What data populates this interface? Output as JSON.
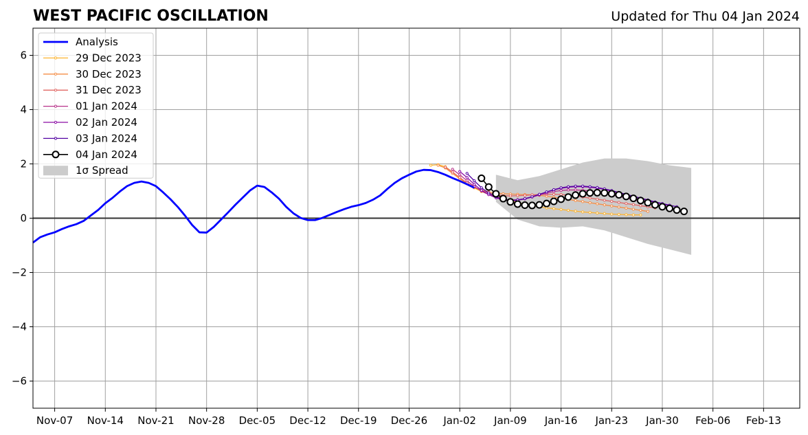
{
  "title": "WEST PACIFIC OSCILLATION",
  "subtitle": "Updated for Thu 04 Jan 2024",
  "chart_data": {
    "type": "line",
    "title": "WEST PACIFIC OSCILLATION",
    "subtitle": "Updated for Thu 04 Jan 2024",
    "xlim": [
      "2023-11-04",
      "2024-02-18"
    ],
    "ylim": [
      -7,
      7
    ],
    "yticks": [
      -6,
      -4,
      -2,
      0,
      2,
      4,
      6
    ],
    "ytick_labels": [
      "−6",
      "−4",
      "−2",
      "0",
      "2",
      "4",
      "6"
    ],
    "xticks": [
      "2023-11-07",
      "2023-11-14",
      "2023-11-21",
      "2023-11-28",
      "2023-12-05",
      "2023-12-12",
      "2023-12-19",
      "2023-12-26",
      "2024-01-02",
      "2024-01-09",
      "2024-01-16",
      "2024-01-23",
      "2024-01-30",
      "2024-02-06",
      "2024-02-13"
    ],
    "xtick_labels": [
      "Nov-07",
      "Nov-14",
      "Nov-21",
      "Nov-28",
      "Dec-05",
      "Dec-12",
      "Dec-19",
      "Dec-26",
      "Jan-02",
      "Jan-09",
      "Jan-16",
      "Jan-23",
      "Jan-30",
      "Feb-06",
      "Feb-13"
    ],
    "grid": true,
    "legend_position": "upper left",
    "spread_label": "1σ Spread",
    "spread": {
      "color": "#cccccc",
      "x": [
        "2024-01-07",
        "2024-01-10",
        "2024-01-13",
        "2024-01-16",
        "2024-01-19",
        "2024-01-22",
        "2024-01-25",
        "2024-01-28",
        "2024-01-31",
        "2024-02-03"
      ],
      "upper": [
        1.6,
        1.4,
        1.55,
        1.8,
        2.05,
        2.2,
        2.2,
        2.1,
        1.95,
        1.85
      ],
      "lower": [
        0.6,
        -0.05,
        -0.3,
        -0.35,
        -0.3,
        -0.45,
        -0.7,
        -0.95,
        -1.15,
        -1.35
      ]
    },
    "analysis": {
      "name": "Analysis",
      "color": "#0000ff",
      "x": [
        "2023-11-04",
        "2023-11-05",
        "2023-11-06",
        "2023-11-07",
        "2023-11-08",
        "2023-11-09",
        "2023-11-10",
        "2023-11-11",
        "2023-11-12",
        "2023-11-13",
        "2023-11-14",
        "2023-11-15",
        "2023-11-16",
        "2023-11-17",
        "2023-11-18",
        "2023-11-19",
        "2023-11-20",
        "2023-11-21",
        "2023-11-22",
        "2023-11-23",
        "2023-11-24",
        "2023-11-25",
        "2023-11-26",
        "2023-11-27",
        "2023-11-28",
        "2023-11-29",
        "2023-11-30",
        "2023-12-01",
        "2023-12-02",
        "2023-12-03",
        "2023-12-04",
        "2023-12-05",
        "2023-12-06",
        "2023-12-07",
        "2023-12-08",
        "2023-12-09",
        "2023-12-10",
        "2023-12-11",
        "2023-12-12",
        "2023-12-13",
        "2023-12-14",
        "2023-12-15",
        "2023-12-16",
        "2023-12-17",
        "2023-12-18",
        "2023-12-19",
        "2023-12-20",
        "2023-12-21",
        "2023-12-22",
        "2023-12-23",
        "2023-12-24",
        "2023-12-25",
        "2023-12-26",
        "2023-12-27",
        "2023-12-28",
        "2023-12-29",
        "2023-12-30",
        "2023-12-31",
        "2024-01-01",
        "2024-01-02",
        "2024-01-03",
        "2024-01-04"
      ],
      "y": [
        -0.9,
        -0.7,
        -0.6,
        -0.52,
        -0.4,
        -0.3,
        -0.22,
        -0.1,
        0.1,
        0.3,
        0.55,
        0.75,
        0.98,
        1.18,
        1.3,
        1.35,
        1.3,
        1.18,
        0.95,
        0.7,
        0.42,
        0.1,
        -0.25,
        -0.52,
        -0.53,
        -0.32,
        -0.05,
        0.22,
        0.5,
        0.76,
        1.02,
        1.2,
        1.15,
        0.95,
        0.72,
        0.42,
        0.18,
        0.01,
        -0.07,
        -0.07,
        0.01,
        0.12,
        0.23,
        0.33,
        0.42,
        0.48,
        0.56,
        0.68,
        0.84,
        1.08,
        1.3,
        1.47,
        1.6,
        1.72,
        1.78,
        1.77,
        1.7,
        1.6,
        1.48,
        1.37,
        1.25,
        1.12
      ]
    },
    "series": [
      {
        "name": "29 Dec 2023",
        "color": "#fdb42f",
        "x_start": "2023-12-29",
        "y": [
          1.95,
          1.97,
          1.9,
          1.7,
          1.48,
          1.28,
          1.12,
          0.98,
          0.88,
          0.8,
          0.72,
          0.65,
          0.58,
          0.52,
          0.47,
          0.42,
          0.38,
          0.35,
          0.32,
          0.29,
          0.26,
          0.23,
          0.21,
          0.19,
          0.17,
          0.15,
          0.14,
          0.13,
          0.12,
          0.12
        ]
      },
      {
        "name": "30 Dec 2023",
        "color": "#f68d45",
        "x_start": "2023-12-30",
        "y": [
          1.95,
          1.85,
          1.65,
          1.45,
          1.27,
          1.13,
          1.03,
          0.97,
          0.93,
          0.9,
          0.89,
          0.88,
          0.87,
          0.86,
          0.84,
          0.81,
          0.77,
          0.73,
          0.69,
          0.65,
          0.61,
          0.57,
          0.53,
          0.49,
          0.45,
          0.41,
          0.37,
          0.33,
          0.29,
          0.25
        ]
      },
      {
        "name": "31 Dec 2023",
        "color": "#e16462",
        "x_start": "2023-12-31",
        "y": [
          1.88,
          1.7,
          1.5,
          1.3,
          1.15,
          1.03,
          0.93,
          0.87,
          0.83,
          0.82,
          0.83,
          0.84,
          0.86,
          0.87,
          0.88,
          0.88,
          0.87,
          0.85,
          0.82,
          0.78,
          0.74,
          0.7,
          0.66,
          0.62,
          0.58,
          0.54,
          0.5,
          0.46,
          0.42,
          0.38
        ]
      },
      {
        "name": "01 Jan 2024",
        "color": "#b83289",
        "x_start": "2024-01-01",
        "y": [
          1.8,
          1.6,
          1.38,
          1.17,
          1.0,
          0.87,
          0.77,
          0.7,
          0.67,
          0.68,
          0.72,
          0.78,
          0.85,
          0.92,
          0.98,
          1.02,
          1.04,
          1.04,
          1.03,
          1.0,
          0.96,
          0.91,
          0.86,
          0.8,
          0.74,
          0.68,
          0.62,
          0.56,
          0.5,
          0.45
        ]
      },
      {
        "name": "02 Jan 2024",
        "color": "#8b0aa5",
        "x_start": "2024-01-02",
        "y": [
          1.72,
          1.5,
          1.25,
          1.03,
          0.87,
          0.75,
          0.67,
          0.64,
          0.66,
          0.71,
          0.78,
          0.87,
          0.96,
          1.04,
          1.1,
          1.14,
          1.16,
          1.16,
          1.14,
          1.11,
          1.06,
          1.0,
          0.93,
          0.86,
          0.79,
          0.72,
          0.65,
          0.58,
          0.52,
          0.46
        ]
      },
      {
        "name": "03 Jan 2024",
        "color": "#5302a3",
        "x_start": "2024-01-03",
        "y": [
          1.65,
          1.38,
          1.12,
          0.93,
          0.79,
          0.7,
          0.66,
          0.67,
          0.72,
          0.79,
          0.88,
          0.97,
          1.05,
          1.12,
          1.16,
          1.18,
          1.18,
          1.16,
          1.13,
          1.08,
          1.02,
          0.95,
          0.88,
          0.81,
          0.74,
          0.67,
          0.6,
          0.54,
          0.48,
          0.42
        ]
      },
      {
        "name": "04 Jan 2024",
        "color": "#000000",
        "x_start": "2024-01-05",
        "y": [
          1.47,
          1.15,
          0.9,
          0.72,
          0.6,
          0.52,
          0.48,
          0.47,
          0.49,
          0.54,
          0.62,
          0.7,
          0.78,
          0.85,
          0.9,
          0.93,
          0.94,
          0.93,
          0.9,
          0.86,
          0.8,
          0.73,
          0.65,
          0.57,
          0.49,
          0.42,
          0.36,
          0.3,
          0.25
        ]
      }
    ]
  }
}
